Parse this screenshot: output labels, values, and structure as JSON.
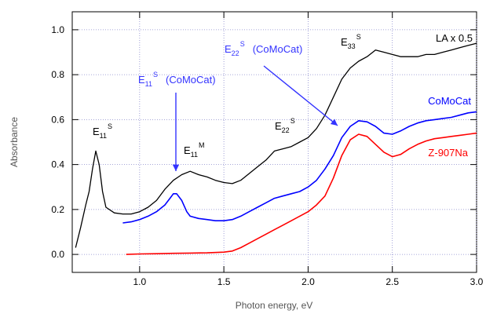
{
  "chart_data": {
    "type": "line",
    "xlabel": "Photon energy, eV",
    "ylabel": "Absorbance",
    "xlim": [
      0.6,
      3.0
    ],
    "ylim": [
      -0.08,
      1.08
    ],
    "xticks": [
      1.0,
      1.5,
      2.0,
      2.5,
      3.0
    ],
    "xtick_labels": [
      "1.0",
      "1.5",
      "2.0",
      "2.5",
      "3.0"
    ],
    "yticks": [
      0.0,
      0.2,
      0.4,
      0.6,
      0.8,
      1.0
    ],
    "ytick_labels": [
      "0.0",
      "0.2",
      "0.4",
      "0.6",
      "0.8",
      "1.0"
    ],
    "grid": true,
    "series": [
      {
        "name": "LA x 0.5",
        "color": "#000000",
        "x": [
          0.62,
          0.65,
          0.68,
          0.7,
          0.72,
          0.74,
          0.76,
          0.78,
          0.8,
          0.85,
          0.9,
          0.95,
          1.0,
          1.05,
          1.1,
          1.15,
          1.2,
          1.25,
          1.3,
          1.35,
          1.4,
          1.45,
          1.5,
          1.55,
          1.6,
          1.65,
          1.7,
          1.75,
          1.8,
          1.85,
          1.9,
          1.95,
          2.0,
          2.05,
          2.1,
          2.15,
          2.2,
          2.25,
          2.3,
          2.35,
          2.4,
          2.45,
          2.5,
          2.55,
          2.6,
          2.65,
          2.7,
          2.75,
          2.8,
          2.85,
          2.9,
          2.95,
          3.0
        ],
        "y": [
          0.03,
          0.12,
          0.22,
          0.28,
          0.38,
          0.46,
          0.4,
          0.28,
          0.21,
          0.185,
          0.18,
          0.18,
          0.19,
          0.21,
          0.24,
          0.29,
          0.33,
          0.355,
          0.37,
          0.355,
          0.345,
          0.33,
          0.32,
          0.315,
          0.33,
          0.36,
          0.39,
          0.42,
          0.46,
          0.47,
          0.48,
          0.5,
          0.52,
          0.56,
          0.62,
          0.7,
          0.78,
          0.83,
          0.86,
          0.88,
          0.91,
          0.9,
          0.89,
          0.88,
          0.88,
          0.88,
          0.89,
          0.89,
          0.9,
          0.91,
          0.92,
          0.93,
          0.94
        ]
      },
      {
        "name": "CoMoCat",
        "color": "#0000ff",
        "x": [
          0.9,
          0.95,
          1.0,
          1.05,
          1.1,
          1.15,
          1.18,
          1.2,
          1.22,
          1.25,
          1.28,
          1.3,
          1.35,
          1.4,
          1.45,
          1.5,
          1.55,
          1.6,
          1.65,
          1.7,
          1.75,
          1.8,
          1.85,
          1.9,
          1.95,
          2.0,
          2.05,
          2.1,
          2.15,
          2.2,
          2.25,
          2.3,
          2.35,
          2.4,
          2.45,
          2.5,
          2.55,
          2.6,
          2.65,
          2.7,
          2.75,
          2.8,
          2.85,
          2.9,
          2.95,
          3.0
        ],
        "y": [
          0.14,
          0.145,
          0.155,
          0.17,
          0.19,
          0.22,
          0.25,
          0.27,
          0.27,
          0.24,
          0.19,
          0.17,
          0.16,
          0.155,
          0.15,
          0.15,
          0.155,
          0.17,
          0.19,
          0.21,
          0.23,
          0.25,
          0.26,
          0.27,
          0.28,
          0.3,
          0.33,
          0.38,
          0.44,
          0.52,
          0.57,
          0.595,
          0.59,
          0.57,
          0.54,
          0.535,
          0.55,
          0.57,
          0.585,
          0.595,
          0.6,
          0.605,
          0.61,
          0.62,
          0.63,
          0.635
        ]
      },
      {
        "name": "Z-907Na",
        "color": "#ff0000",
        "x": [
          0.92,
          1.0,
          1.1,
          1.2,
          1.3,
          1.4,
          1.5,
          1.55,
          1.6,
          1.65,
          1.7,
          1.75,
          1.8,
          1.85,
          1.9,
          1.95,
          2.0,
          2.05,
          2.1,
          2.15,
          2.2,
          2.25,
          2.3,
          2.35,
          2.4,
          2.45,
          2.5,
          2.55,
          2.6,
          2.65,
          2.7,
          2.75,
          2.8,
          2.85,
          2.9,
          2.95,
          3.0
        ],
        "y": [
          0.0,
          0.002,
          0.003,
          0.005,
          0.006,
          0.007,
          0.01,
          0.015,
          0.03,
          0.05,
          0.07,
          0.09,
          0.11,
          0.13,
          0.15,
          0.17,
          0.19,
          0.22,
          0.26,
          0.34,
          0.44,
          0.51,
          0.535,
          0.525,
          0.49,
          0.455,
          0.435,
          0.445,
          0.47,
          0.49,
          0.505,
          0.515,
          0.52,
          0.525,
          0.53,
          0.535,
          0.54
        ]
      }
    ],
    "annotations": [
      {
        "main": "E",
        "sub": "11",
        "sup": "S",
        "color": "#000000"
      },
      {
        "main": "E",
        "sub": "11",
        "sup": "M",
        "color": "#000000"
      },
      {
        "main": "E",
        "sub": "22",
        "sup": "S",
        "color": "#000000"
      },
      {
        "main": "E",
        "sub": "33",
        "sup": "S",
        "color": "#000000"
      },
      {
        "main": "E",
        "sub": "11",
        "sup": "S",
        "suffix": "(CoMoCat)",
        "color": "#3333ff"
      },
      {
        "main": "E",
        "sub": "22",
        "sup": "S",
        "suffix": "(CoMoCat)",
        "color": "#3333ff"
      }
    ],
    "series_labels": [
      "LA x 0.5",
      "CoMoCat",
      "Z-907Na"
    ]
  }
}
